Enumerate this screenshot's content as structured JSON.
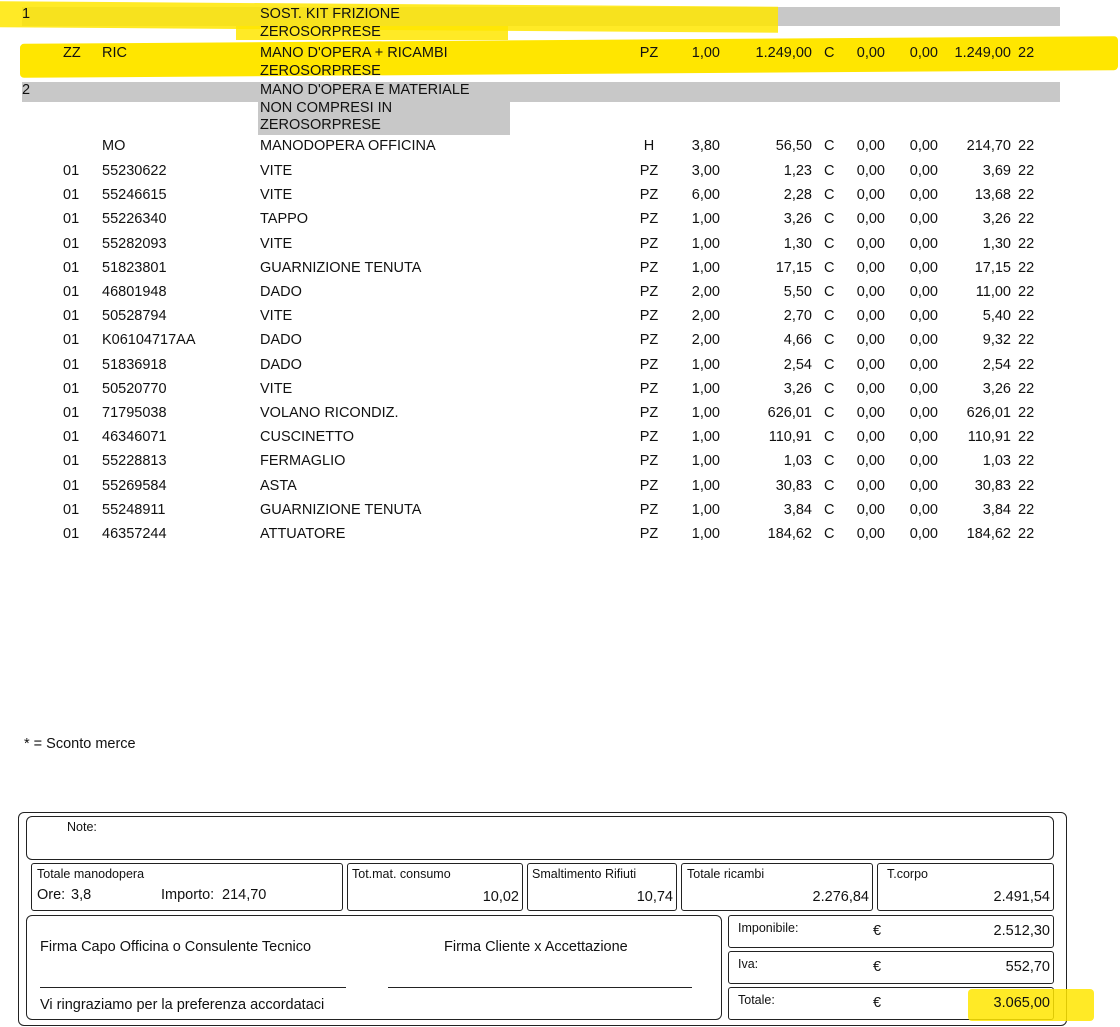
{
  "rows": [
    {
      "group": "1",
      "desc": [
        "SOST. KIT FRIZIONE",
        "ZEROSORPRESE"
      ]
    },
    {
      "code1": "ZZ",
      "code2": "RIC",
      "desc": [
        "MANO D'OPERA + RICAMBI",
        "ZEROSORPRESE"
      ],
      "um": "PZ",
      "qty": "1,00",
      "price": "1.249,00",
      "flag": "C",
      "disc1": "0,00",
      "disc2": "0,00",
      "total": "1.249,00",
      "vat": "22"
    },
    {
      "group": "2",
      "desc": [
        "MANO D'OPERA E MATERIALE",
        "NON COMPRESI IN",
        "ZEROSORPRESE"
      ]
    },
    {
      "code2": "MO",
      "desc": [
        "MANODOPERA OFFICINA"
      ],
      "um": "H",
      "qty": "3,80",
      "price": "56,50",
      "flag": "C",
      "disc1": "0,00",
      "disc2": "0,00",
      "total": "214,70",
      "vat": "22"
    },
    {
      "code1": "01",
      "code2": "55230622",
      "desc": [
        "VITE"
      ],
      "um": "PZ",
      "qty": "3,00",
      "price": "1,23",
      "flag": "C",
      "disc1": "0,00",
      "disc2": "0,00",
      "total": "3,69",
      "vat": "22"
    },
    {
      "code1": "01",
      "code2": "55246615",
      "desc": [
        "VITE"
      ],
      "um": "PZ",
      "qty": "6,00",
      "price": "2,28",
      "flag": "C",
      "disc1": "0,00",
      "disc2": "0,00",
      "total": "13,68",
      "vat": "22"
    },
    {
      "code1": "01",
      "code2": "55226340",
      "desc": [
        "TAPPO"
      ],
      "um": "PZ",
      "qty": "1,00",
      "price": "3,26",
      "flag": "C",
      "disc1": "0,00",
      "disc2": "0,00",
      "total": "3,26",
      "vat": "22"
    },
    {
      "code1": "01",
      "code2": "55282093",
      "desc": [
        "VITE"
      ],
      "um": "PZ",
      "qty": "1,00",
      "price": "1,30",
      "flag": "C",
      "disc1": "0,00",
      "disc2": "0,00",
      "total": "1,30",
      "vat": "22"
    },
    {
      "code1": "01",
      "code2": "51823801",
      "desc": [
        "GUARNIZIONE TENUTA"
      ],
      "um": "PZ",
      "qty": "1,00",
      "price": "17,15",
      "flag": "C",
      "disc1": "0,00",
      "disc2": "0,00",
      "total": "17,15",
      "vat": "22"
    },
    {
      "code1": "01",
      "code2": "46801948",
      "desc": [
        "DADO"
      ],
      "um": "PZ",
      "qty": "2,00",
      "price": "5,50",
      "flag": "C",
      "disc1": "0,00",
      "disc2": "0,00",
      "total": "11,00",
      "vat": "22"
    },
    {
      "code1": "01",
      "code2": "50528794",
      "desc": [
        "VITE"
      ],
      "um": "PZ",
      "qty": "2,00",
      "price": "2,70",
      "flag": "C",
      "disc1": "0,00",
      "disc2": "0,00",
      "total": "5,40",
      "vat": "22"
    },
    {
      "code1": "01",
      "code2": "K06104717AA",
      "desc": [
        "DADO"
      ],
      "um": "PZ",
      "qty": "2,00",
      "price": "4,66",
      "flag": "C",
      "disc1": "0,00",
      "disc2": "0,00",
      "total": "9,32",
      "vat": "22"
    },
    {
      "code1": "01",
      "code2": "51836918",
      "desc": [
        "DADO"
      ],
      "um": "PZ",
      "qty": "1,00",
      "price": "2,54",
      "flag": "C",
      "disc1": "0,00",
      "disc2": "0,00",
      "total": "2,54",
      "vat": "22"
    },
    {
      "code1": "01",
      "code2": "50520770",
      "desc": [
        "VITE"
      ],
      "um": "PZ",
      "qty": "1,00",
      "price": "3,26",
      "flag": "C",
      "disc1": "0,00",
      "disc2": "0,00",
      "total": "3,26",
      "vat": "22"
    },
    {
      "code1": "01",
      "code2": "71795038",
      "desc": [
        "VOLANO RICONDIZ."
      ],
      "um": "PZ",
      "qty": "1,00",
      "price": "626,01",
      "flag": "C",
      "disc1": "0,00",
      "disc2": "0,00",
      "total": "626,01",
      "vat": "22"
    },
    {
      "code1": "01",
      "code2": "46346071",
      "desc": [
        "CUSCINETTO"
      ],
      "um": "PZ",
      "qty": "1,00",
      "price": "110,91",
      "flag": "C",
      "disc1": "0,00",
      "disc2": "0,00",
      "total": "110,91",
      "vat": "22"
    },
    {
      "code1": "01",
      "code2": "55228813",
      "desc": [
        "FERMAGLIO"
      ],
      "um": "PZ",
      "qty": "1,00",
      "price": "1,03",
      "flag": "C",
      "disc1": "0,00",
      "disc2": "0,00",
      "total": "1,03",
      "vat": "22"
    },
    {
      "code1": "01",
      "code2": "55269584",
      "desc": [
        "ASTA"
      ],
      "um": "PZ",
      "qty": "1,00",
      "price": "30,83",
      "flag": "C",
      "disc1": "0,00",
      "disc2": "0,00",
      "total": "30,83",
      "vat": "22"
    },
    {
      "code1": "01",
      "code2": "55248911",
      "desc": [
        "GUARNIZIONE TENUTA"
      ],
      "um": "PZ",
      "qty": "1,00",
      "price": "3,84",
      "flag": "C",
      "disc1": "0,00",
      "disc2": "0,00",
      "total": "3,84",
      "vat": "22"
    },
    {
      "code1": "01",
      "code2": "46357244",
      "desc": [
        "ATTUATORE"
      ],
      "um": "PZ",
      "qty": "1,00",
      "price": "184,62",
      "flag": "C",
      "disc1": "0,00",
      "disc2": "0,00",
      "total": "184,62",
      "vat": "22"
    }
  ],
  "footnote": "* = Sconto merce",
  "note_label": "Note:",
  "summary": {
    "labour": {
      "label": "Totale manodopera",
      "hours_label": "Ore:",
      "hours": "3,8",
      "amount_label": "Importo:",
      "amount": "214,70"
    },
    "consumables": {
      "label": "Tot.mat. consumo",
      "value": "10,02"
    },
    "disposal": {
      "label": "Smaltimento Rifiuti",
      "value": "10,74"
    },
    "parts": {
      "label": "Totale ricambi",
      "value": "2.276,84"
    },
    "body": {
      "label": "T.corpo",
      "value": "2.491,54"
    }
  },
  "signatures": {
    "workshop": "Firma Capo Officina o Consulente Tecnico",
    "customer": "Firma Cliente x Accettazione",
    "thanks": "Vi ringraziamo per la preferenza accordataci"
  },
  "totals": [
    {
      "label": "Imponibile:",
      "currency": "€",
      "value": "2.512,30"
    },
    {
      "label": "Iva:",
      "currency": "€",
      "value": "552,70"
    },
    {
      "label": "Totale:",
      "currency": "€",
      "value": "3.065,00"
    }
  ]
}
